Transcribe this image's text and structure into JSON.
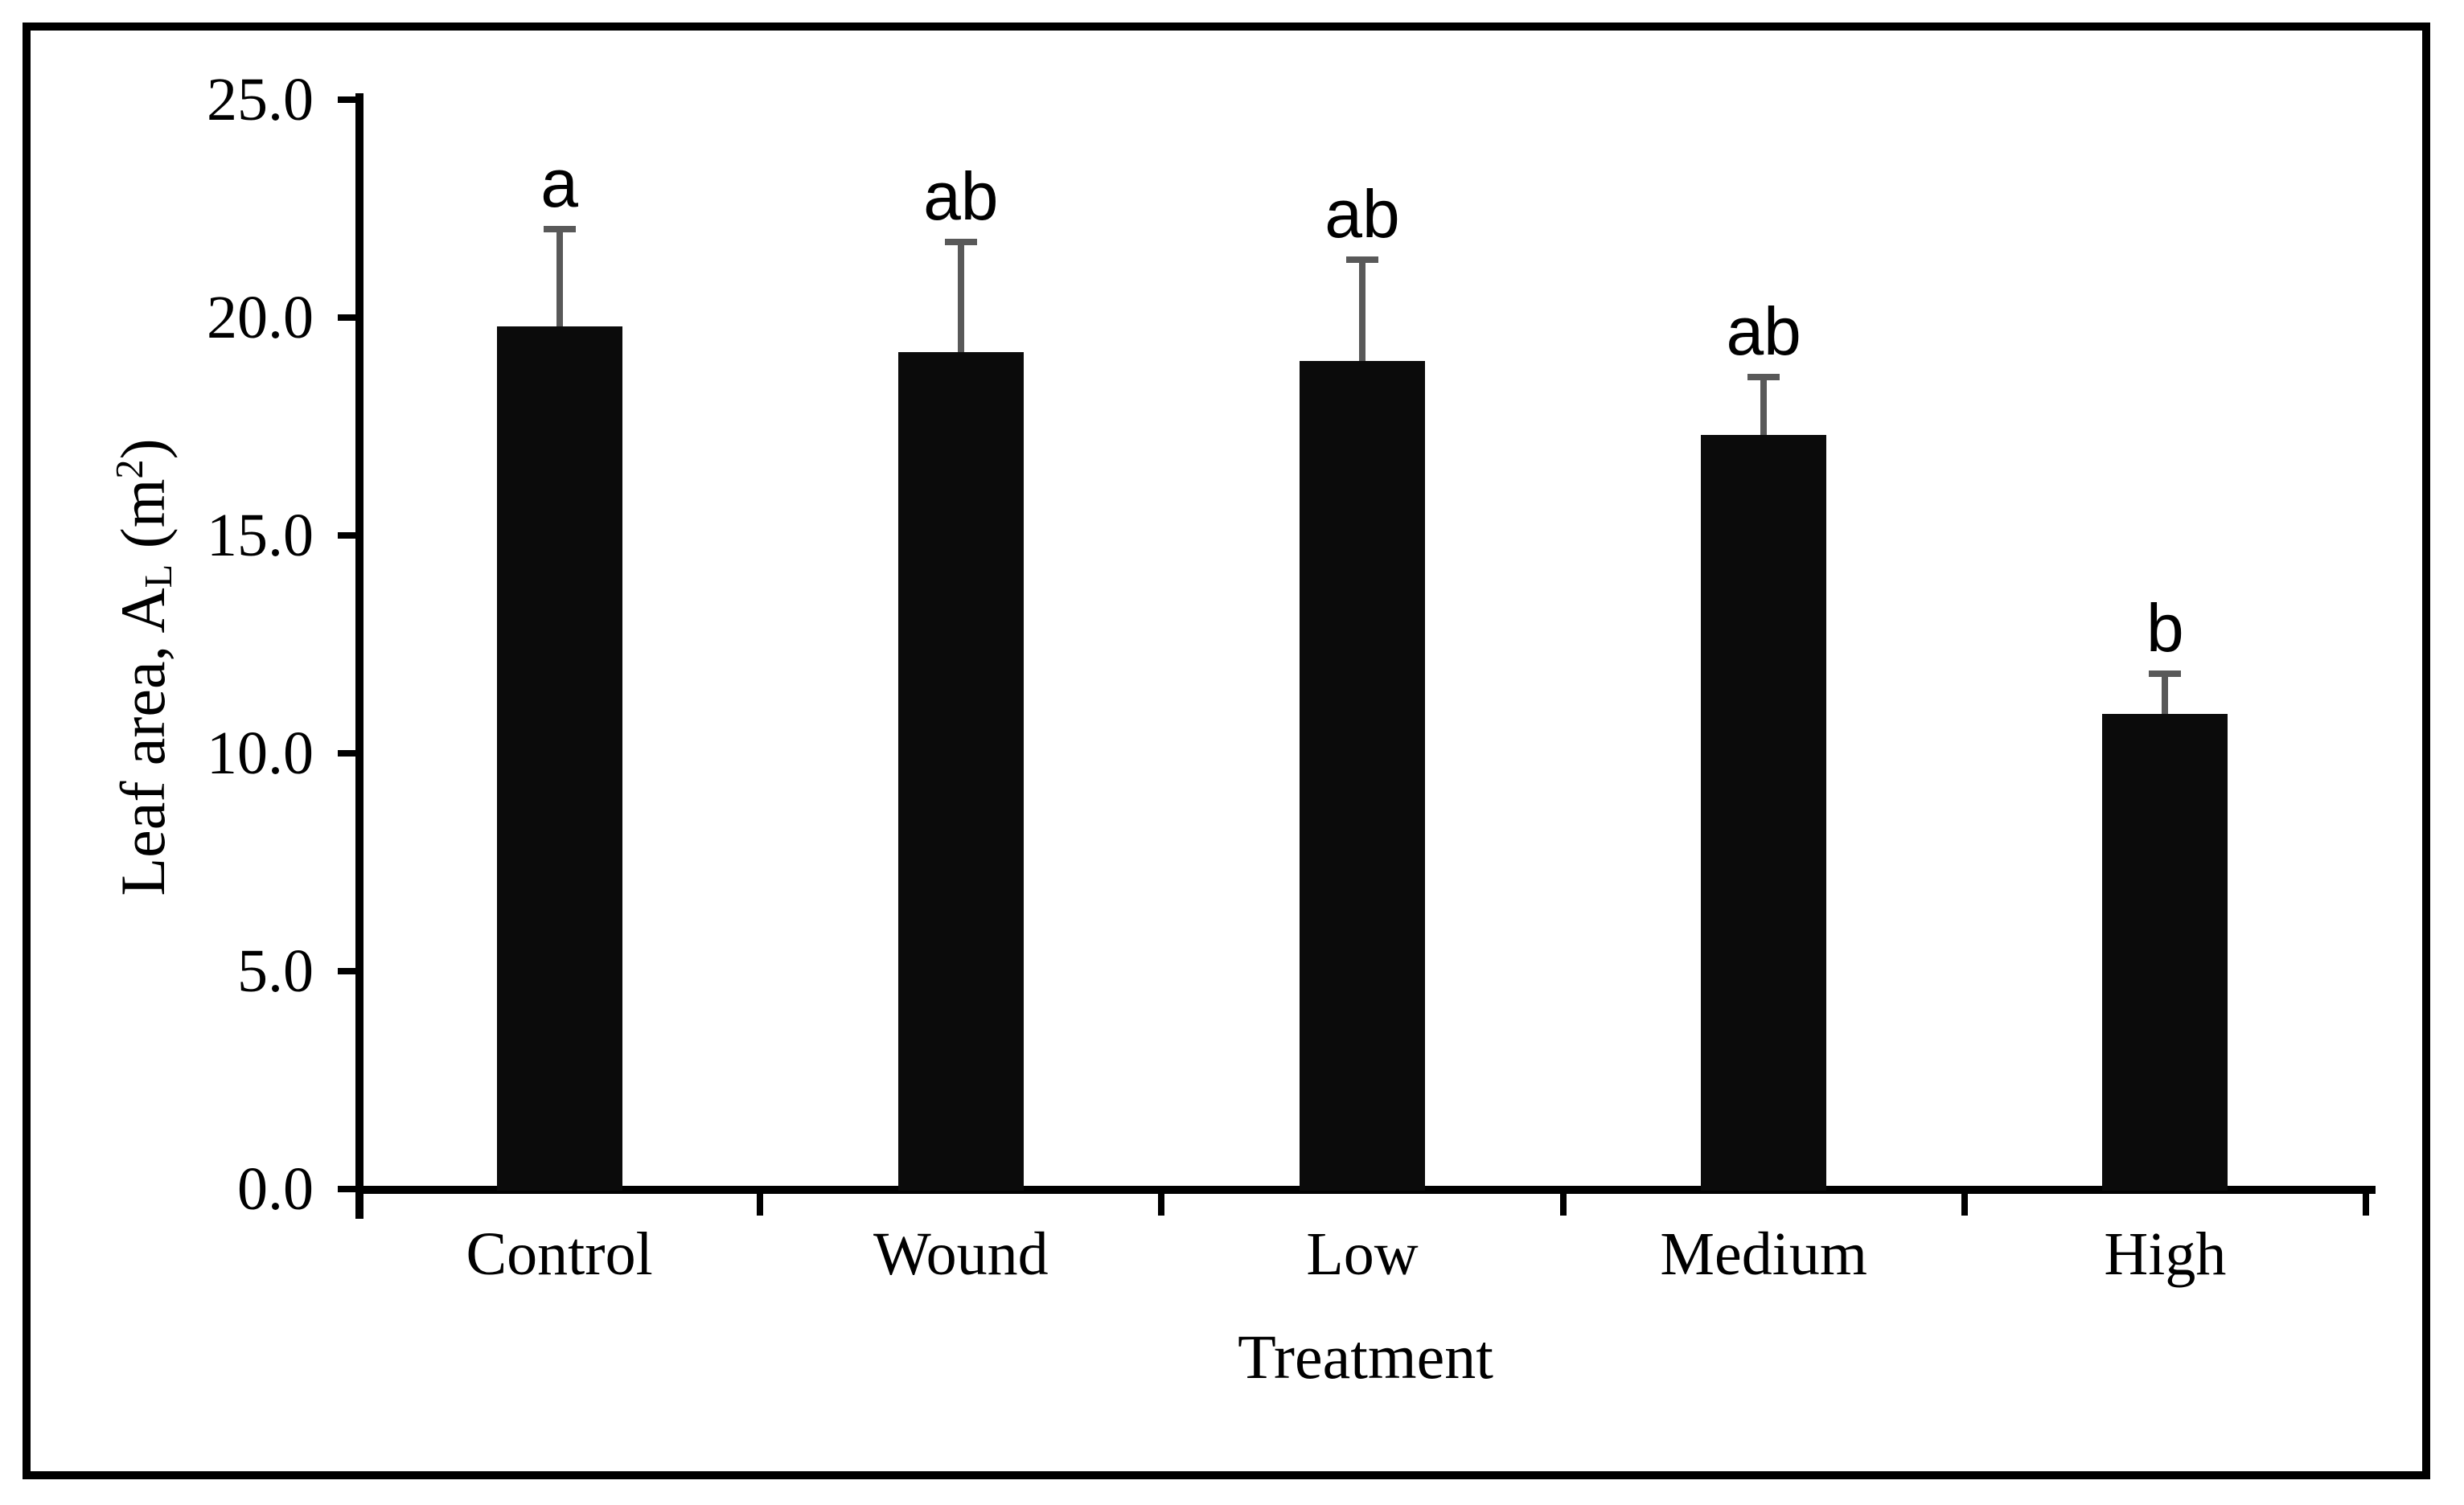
{
  "chart_data": {
    "type": "bar",
    "title": "",
    "categories": [
      "Control",
      "Wound",
      "Low",
      "Medium",
      "High"
    ],
    "values": [
      19.8,
      19.2,
      19.0,
      17.3,
      10.9
    ],
    "errors_up": [
      2.3,
      2.6,
      2.4,
      1.4,
      1.0
    ],
    "sig_letters": [
      "a",
      "ab",
      "ab",
      "ab",
      "b"
    ],
    "xlabel": "Treatment",
    "ylabel_text": "Leaf area, AL (m2)",
    "ylabel_parts": [
      {
        "text": "Leaf area, A",
        "style": "normal"
      },
      {
        "text": "L",
        "style": "sub"
      },
      {
        "text": " (m",
        "style": "normal"
      },
      {
        "text": "2",
        "style": "sup"
      },
      {
        "text": ")",
        "style": "normal"
      }
    ],
    "yticks": [
      {
        "value": 0,
        "label": "0.0"
      },
      {
        "value": 5,
        "label": "5.0"
      },
      {
        "value": 10,
        "label": "10.0"
      },
      {
        "value": 15,
        "label": "15.0"
      },
      {
        "value": 20,
        "label": "20.0"
      },
      {
        "value": 25,
        "label": "25.0"
      }
    ],
    "ylim": [
      0,
      25
    ],
    "grid": false,
    "legend": "none",
    "bar_color": "#0b0b0b",
    "error_bar_color": "#595959",
    "axis_color": "#000000"
  }
}
